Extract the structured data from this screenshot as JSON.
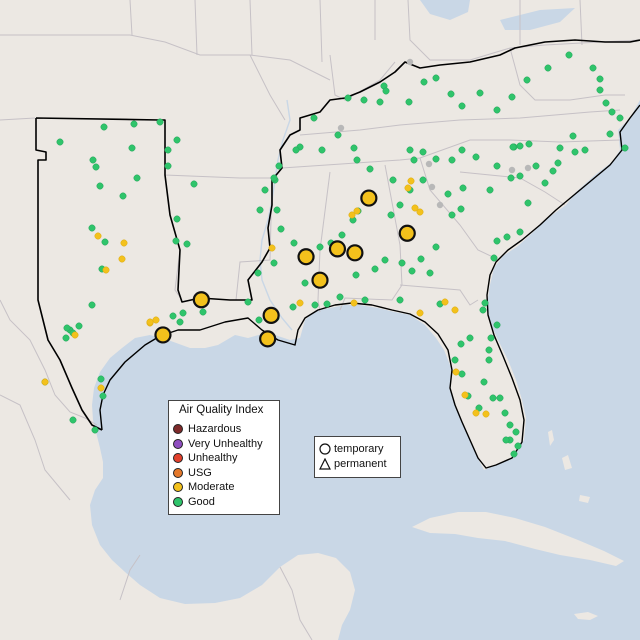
{
  "colors": {
    "ocean": "#c9d7e6",
    "land": "#ece8e3",
    "land_light": "#f4f2ef",
    "border": "#c7c2c9",
    "region_outline": "#000000"
  },
  "aqi_legend": {
    "title": "Air Quality Index",
    "items": [
      {
        "label": "Hazardous",
        "color": "#7e2a2a"
      },
      {
        "label": "Very Unhealthy",
        "color": "#8f4ec0"
      },
      {
        "label": "Unhealthy",
        "color": "#e2402c"
      },
      {
        "label": "USG",
        "color": "#e4782a"
      },
      {
        "label": "Moderate",
        "color": "#f3c11c"
      },
      {
        "label": "Good",
        "color": "#2fc46b"
      }
    ]
  },
  "monitor_type_legend": {
    "items": [
      {
        "label": "temporary",
        "shape": "circle"
      },
      {
        "label": "permanent",
        "shape": "triangle"
      }
    ]
  },
  "temporary_monitors": [
    {
      "lon": -84.2,
      "lat": 34.5,
      "aqi": "Moderate"
    },
    {
      "lon": -83.1,
      "lat": 33.6,
      "aqi": "Moderate"
    },
    {
      "lon": -85.1,
      "lat": 33.2,
      "aqi": "Moderate"
    },
    {
      "lon": -86.0,
      "lat": 33.0,
      "aqi": "Moderate"
    },
    {
      "lon": -84.6,
      "lat": 33.1,
      "aqi": "Moderate"
    },
    {
      "lon": -85.6,
      "lat": 32.4,
      "aqi": "Moderate"
    },
    {
      "lon": -89.0,
      "lat": 31.9,
      "aqi": "Moderate"
    },
    {
      "lon": -87.0,
      "lat": 31.5,
      "aqi": "Moderate"
    },
    {
      "lon": -90.1,
      "lat": 31.0,
      "aqi": "Moderate"
    },
    {
      "lon": -87.1,
      "lat": 30.9,
      "aqi": "Moderate"
    }
  ]
}
